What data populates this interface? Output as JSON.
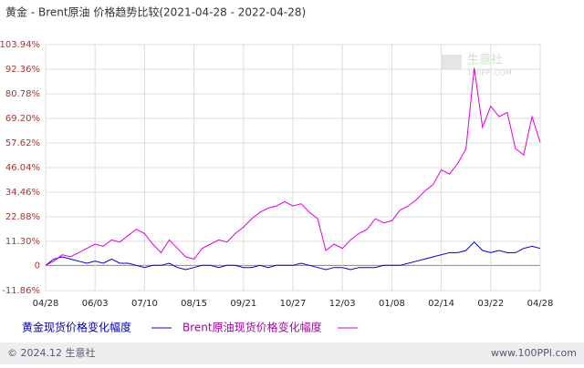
{
  "chart_data": {
    "type": "line",
    "title": "黄金 - Brent原油 价格趋势比较(2021-04-28 - 2022-04-28)",
    "categories": [
      "04/28",
      null,
      null,
      null,
      null,
      null,
      "06/03",
      null,
      null,
      null,
      null,
      null,
      "07/10",
      null,
      null,
      null,
      null,
      null,
      "08/15",
      null,
      null,
      null,
      null,
      null,
      "09/21",
      null,
      null,
      null,
      null,
      null,
      "10/27",
      null,
      null,
      null,
      null,
      null,
      "12/03",
      null,
      null,
      null,
      null,
      null,
      "01/08",
      null,
      null,
      null,
      null,
      null,
      "02/14",
      null,
      null,
      null,
      null,
      null,
      "03/22",
      null,
      null,
      null,
      null,
      null,
      "04/28"
    ],
    "series": [
      {
        "name": "黄金现货价格变化幅度",
        "color": "#0000cc",
        "values": [
          0,
          3,
          4,
          3,
          2,
          1,
          2,
          1,
          3,
          1,
          1,
          0,
          -1,
          0,
          0,
          1,
          -1,
          -2,
          -1,
          0,
          0,
          -1,
          0,
          0,
          -1,
          -1,
          0,
          -1,
          0,
          0,
          0,
          1,
          0,
          -1,
          -2,
          -1,
          -1,
          -2,
          -1,
          -1,
          -1,
          0,
          0,
          0,
          1,
          2,
          3,
          4,
          5,
          6,
          6,
          7,
          11,
          7,
          6,
          7,
          6,
          6,
          8,
          9,
          8
        ]
      },
      {
        "name": "Brent原油现货价格变化幅度",
        "color": "#dd00dd",
        "values": [
          0,
          2,
          5,
          4,
          6,
          8,
          10,
          9,
          12,
          11,
          14,
          17,
          15,
          10,
          6,
          12,
          8,
          4,
          3,
          8,
          10,
          12,
          11,
          15,
          18,
          22,
          25,
          27,
          28,
          30,
          28,
          29,
          25,
          22,
          7,
          10,
          8,
          12,
          15,
          17,
          22,
          20,
          21,
          26,
          28,
          31,
          35,
          38,
          45,
          43,
          48,
          55,
          93,
          65,
          75,
          70,
          72,
          55,
          52,
          70,
          58
        ]
      }
    ],
    "ylim": [
      -11.86,
      103.94
    ],
    "yticks": [
      {
        "value": -11.86,
        "label": "-11.86%"
      },
      0,
      {
        "value": 11.3,
        "label": "11.30%"
      },
      {
        "value": 22.88,
        "label": "22.88%"
      },
      {
        "value": 34.46,
        "label": "34.46%"
      },
      {
        "value": 46.04,
        "label": "46.04%"
      },
      {
        "value": 57.62,
        "label": "57.62%"
      },
      {
        "value": 69.2,
        "label": "69.20%"
      },
      {
        "value": 80.78,
        "label": "80.78%"
      },
      {
        "value": 92.36,
        "label": "92.36%"
      },
      {
        "value": 103.94,
        "label": "103.94%"
      }
    ],
    "grid": true,
    "watermark": {
      "name": "生意社",
      "site": "100PPI.COM"
    },
    "footer": {
      "left": "© 2024.12 生意社",
      "right": "www.100PPI.com"
    }
  }
}
